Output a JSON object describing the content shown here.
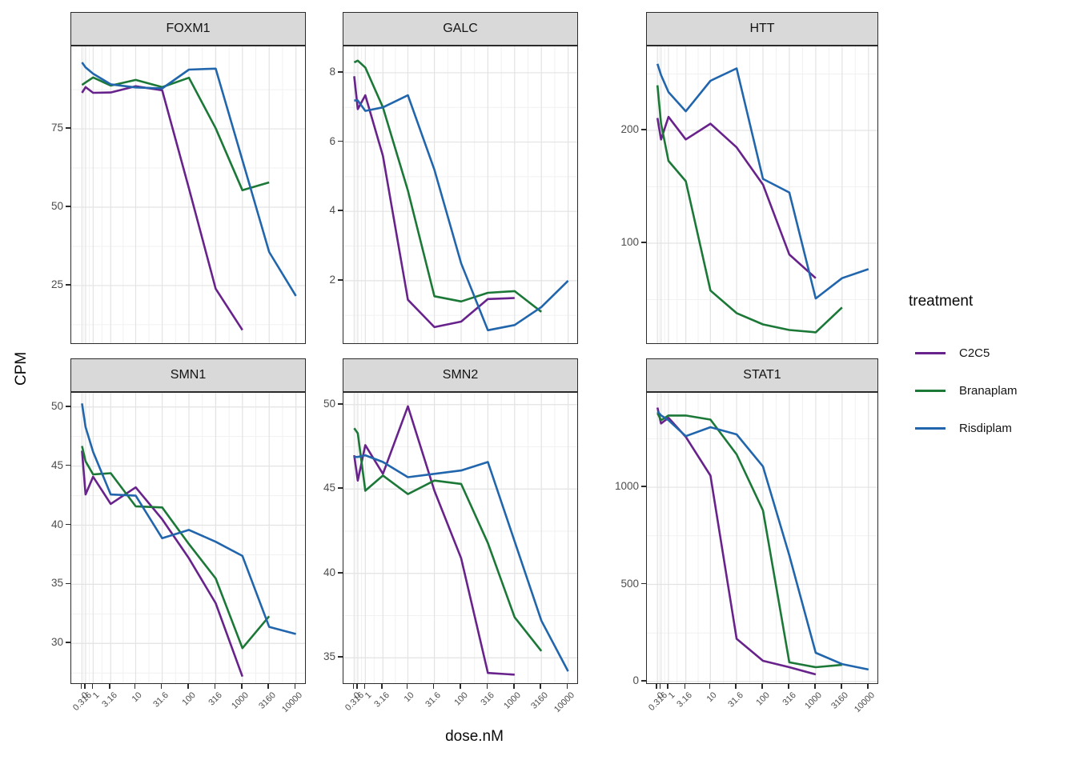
{
  "figure": {
    "y_axis_title": "CPM",
    "x_axis_title": "dose.nM"
  },
  "legend": {
    "title": "treatment",
    "items": [
      {
        "label": "C2C5",
        "color": "#68228B"
      },
      {
        "label": "Branaplam",
        "color": "#1B7837"
      },
      {
        "label": "Risdiplam",
        "color": "#2166AC"
      }
    ]
  },
  "chart_data": {
    "type": "line",
    "title": "",
    "xlabel": "dose.nM",
    "ylabel": "CPM",
    "x_scale": "pseudo-log (asinh(x/2)/ln10)",
    "grid": "major and minor, light gray",
    "legend_position": "right",
    "facet_by": "gene",
    "x": [
      0,
      0.316,
      1,
      3.16,
      10,
      31.6,
      100,
      316,
      1000,
      3160,
      10000
    ],
    "x_tick_labels": [
      "0",
      "0.316",
      "1",
      "3.16",
      "10",
      "31.6",
      "100",
      "316",
      "1000",
      "3160",
      "10000"
    ],
    "panels": [
      {
        "title": "FOXM1",
        "ylim": [
          6.1,
          101.3
        ],
        "y_ticks": [
          25,
          50,
          75
        ],
        "series": [
          {
            "name": "C2C5",
            "values": [
              86.5,
              88.3,
              86.5,
              86.6,
              88.6,
              87.3,
              56.0,
              24.0,
              10.8
            ]
          },
          {
            "name": "Branaplam",
            "values": [
              89.0,
              89.8,
              91.4,
              88.8,
              90.6,
              88.3,
              91.3,
              75.2,
              55.4,
              57.9
            ]
          },
          {
            "name": "Risdiplam",
            "values": [
              96.2,
              94.6,
              92.6,
              89.2,
              88.2,
              87.9,
              93.9,
              94.2,
              65.0,
              35.7,
              21.7
            ]
          }
        ]
      },
      {
        "title": "GALC",
        "ylim": [
          0.15,
          8.76
        ],
        "y_ticks": [
          2,
          4,
          6,
          8
        ],
        "series": [
          {
            "name": "C2C5",
            "values": [
              7.9,
              6.95,
              7.35,
              5.6,
              1.45,
              0.66,
              0.82,
              1.47,
              1.5
            ]
          },
          {
            "name": "Branaplam",
            "values": [
              8.3,
              8.35,
              8.15,
              7.0,
              4.6,
              1.55,
              1.4,
              1.65,
              1.7,
              1.1
            ]
          },
          {
            "name": "Risdiplam",
            "values": [
              7.2,
              7.2,
              6.9,
              7.0,
              7.35,
              5.2,
              2.5,
              0.57,
              0.72,
              1.24,
              2.0
            ]
          }
        ]
      },
      {
        "title": "HTT",
        "ylim": [
          9.9,
          274.5
        ],
        "y_ticks": [
          100,
          200
        ],
        "series": [
          {
            "name": "C2C5",
            "values": [
              211,
              192,
              212,
              192,
              206,
              185,
              152,
              90,
              69
            ]
          },
          {
            "name": "Branaplam",
            "values": [
              240,
              206,
              173,
              155,
              58,
              38,
              28,
              23,
              21,
              43
            ]
          },
          {
            "name": "Risdiplam",
            "values": [
              259,
              249,
              234,
              217,
              244,
              255,
              157,
              145,
              51,
              69,
              77
            ]
          }
        ]
      },
      {
        "title": "SMN1",
        "ylim": [
          26.5,
          51.2
        ],
        "y_ticks": [
          30,
          35,
          40,
          45,
          50
        ],
        "series": [
          {
            "name": "C2C5",
            "values": [
              46.3,
              42.6,
              44.1,
              41.8,
              43.2,
              40.5,
              37.2,
              33.4,
              27.2
            ]
          },
          {
            "name": "Branaplam",
            "values": [
              46.7,
              45.4,
              44.3,
              44.4,
              41.6,
              41.5,
              38.4,
              35.5,
              29.6,
              32.3
            ]
          },
          {
            "name": "Risdiplam",
            "values": [
              50.3,
              48.3,
              46.2,
              42.6,
              42.5,
              38.9,
              39.6,
              38.6,
              37.4,
              31.4,
              30.8
            ]
          }
        ]
      },
      {
        "title": "SMN2",
        "ylim": [
          33.4,
          50.7
        ],
        "y_ticks": [
          35,
          40,
          45,
          50
        ],
        "series": [
          {
            "name": "C2C5",
            "values": [
              47.0,
              45.5,
              47.6,
              45.9,
              49.9,
              44.9,
              40.9,
              34.1,
              34.0
            ]
          },
          {
            "name": "Branaplam",
            "values": [
              48.6,
              48.3,
              44.9,
              45.8,
              44.7,
              45.5,
              45.3,
              41.8,
              37.4,
              35.4
            ]
          },
          {
            "name": "Risdiplam",
            "values": [
              46.9,
              46.9,
              47.0,
              46.6,
              45.7,
              45.9,
              46.1,
              46.6,
              41.9,
              37.2,
              34.2
            ]
          }
        ]
      },
      {
        "title": "STAT1",
        "ylim": [
          -16.5,
          1486
        ],
        "y_ticks": [
          0,
          500,
          1000
        ],
        "series": [
          {
            "name": "C2C5",
            "values": [
              1410,
              1328,
              1357,
              1259,
              1060,
              220,
              107,
              74,
              37
            ]
          },
          {
            "name": "Branaplam",
            "values": [
              1382,
              1345,
              1369,
              1369,
              1348,
              1169,
              881,
              99,
              74,
              86
            ]
          },
          {
            "name": "Risdiplam",
            "values": [
              1390,
              1370,
              1345,
              1263,
              1309,
              1272,
              1107,
              650,
              148,
              90,
              62
            ]
          }
        ]
      }
    ]
  }
}
